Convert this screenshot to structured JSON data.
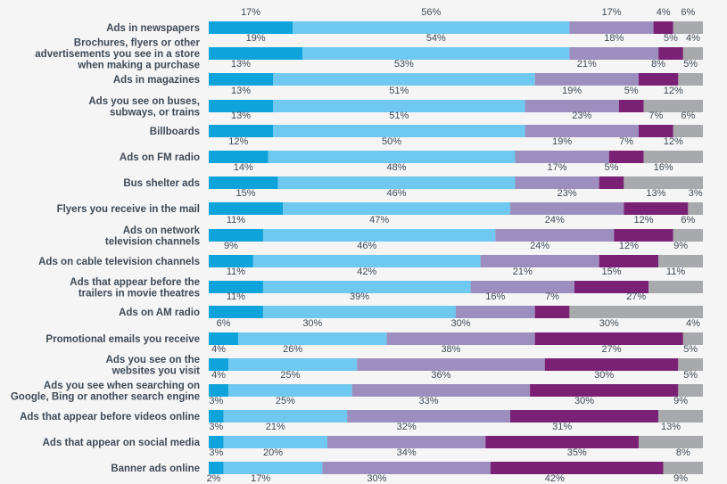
{
  "chart_data": {
    "type": "bar",
    "orientation": "horizontal",
    "stacked": true,
    "units": "%",
    "xlim": [
      0,
      100
    ],
    "grid": false,
    "legend": "none",
    "colors": [
      "#0fa3dc",
      "#6ec8ef",
      "#9c8fbf",
      "#7b2175",
      "#a7a9ac"
    ],
    "categories": [
      {
        "lines": [
          "Ads in newspapers"
        ],
        "values": [
          17,
          56,
          17,
          4,
          6
        ]
      },
      {
        "lines": [
          "Brochures, flyers or other",
          "advertisements you see in a store",
          "when making a purchase"
        ],
        "values": [
          19,
          54,
          18,
          5,
          4
        ]
      },
      {
        "lines": [
          "Ads in magazines"
        ],
        "values": [
          13,
          53,
          21,
          8,
          5
        ]
      },
      {
        "lines": [
          "Ads you see on buses,",
          "subways, or trains"
        ],
        "values": [
          13,
          51,
          19,
          5,
          12
        ]
      },
      {
        "lines": [
          "Billboards"
        ],
        "values": [
          13,
          51,
          23,
          7,
          6
        ]
      },
      {
        "lines": [
          "Ads on FM radio"
        ],
        "values": [
          12,
          50,
          19,
          7,
          12
        ]
      },
      {
        "lines": [
          "Bus shelter ads"
        ],
        "values": [
          14,
          48,
          17,
          5,
          16
        ]
      },
      {
        "lines": [
          "Flyers you receive in the mail"
        ],
        "values": [
          15,
          46,
          23,
          13,
          3
        ]
      },
      {
        "lines": [
          "Ads on network",
          "television channels"
        ],
        "values": [
          11,
          47,
          24,
          12,
          6
        ]
      },
      {
        "lines": [
          "Ads on cable television channels"
        ],
        "values": [
          9,
          46,
          24,
          12,
          9
        ]
      },
      {
        "lines": [
          "Ads that appear before the",
          "trailers in movie theatres"
        ],
        "values": [
          11,
          42,
          21,
          15,
          11
        ]
      },
      {
        "lines": [
          "Ads on AM radio"
        ],
        "values": [
          11,
          39,
          16,
          7,
          27
        ]
      },
      {
        "lines": [
          "Promotional emails you receive"
        ],
        "values": [
          6,
          30,
          30,
          30,
          4
        ]
      },
      {
        "lines": [
          "Ads you see on the",
          "websites you visit"
        ],
        "values": [
          4,
          26,
          38,
          27,
          5
        ]
      },
      {
        "lines": [
          "Ads you see when searching on",
          "Google, Bing or another search engine"
        ],
        "values": [
          4,
          25,
          36,
          30,
          5
        ]
      },
      {
        "lines": [
          "Ads that appear before videos online"
        ],
        "values": [
          3,
          25,
          33,
          30,
          9
        ]
      },
      {
        "lines": [
          "Ads that appear on social media"
        ],
        "values": [
          3,
          21,
          32,
          31,
          13
        ]
      },
      {
        "lines": [
          "Banner ads online"
        ],
        "values": [
          3,
          20,
          34,
          35,
          8
        ]
      },
      {
        "lines": [
          ""
        ],
        "values": [
          2,
          17,
          30,
          42,
          9
        ]
      }
    ]
  }
}
